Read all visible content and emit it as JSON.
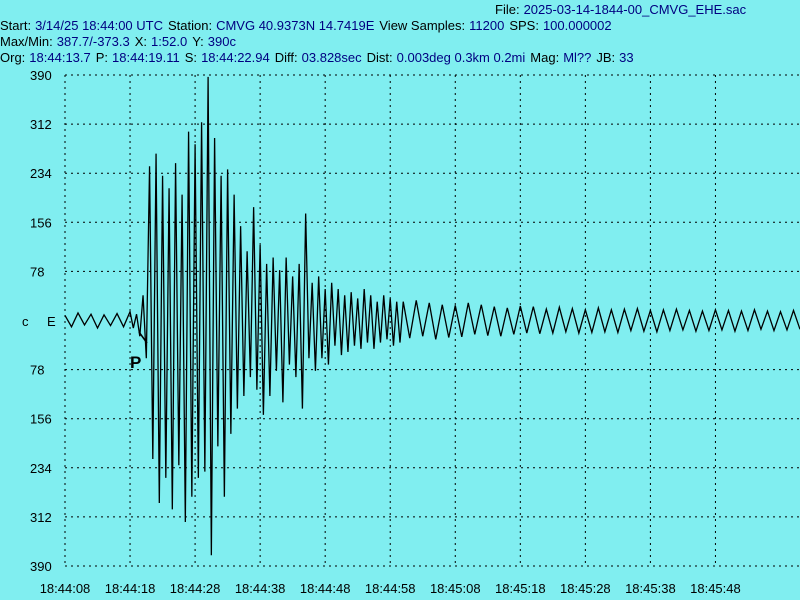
{
  "header": {
    "lines": [
      [
        {
          "label": "File:",
          "value": "2025-03-14-1844-00_CMVG_EHE.sac"
        }
      ],
      [
        {
          "label": "Start:",
          "value": "3/14/25 18:44:00 UTC"
        },
        {
          "label": "Station:",
          "value": "CMVG 40.9373N 14.7419E"
        },
        {
          "label": "View Samples:",
          "value": "11200"
        },
        {
          "label": "SPS:",
          "value": "100.000002"
        }
      ],
      [
        {
          "label": "Max/Min:",
          "value": "387.7/-373.3"
        },
        {
          "label": "X:",
          "value": "1:52.0"
        },
        {
          "label": "Y:",
          "value": "390c"
        }
      ],
      [
        {
          "label": "Org:",
          "value": "18:44:13.7"
        },
        {
          "label": "P:",
          "value": "18:44:19.11"
        },
        {
          "label": "S:",
          "value": "18:44:22.94"
        },
        {
          "label": "Diff:",
          "value": "03.828sec"
        },
        {
          "label": "Dist:",
          "value": "0.003deg 0.3km 0.2mi"
        },
        {
          "label": "Mag:",
          "value": "Ml??"
        },
        {
          "label": "JB:",
          "value": "33"
        }
      ]
    ]
  },
  "chart_data": {
    "type": "line",
    "color": "#000000",
    "grid": true,
    "channel": "c",
    "component": "E",
    "annotation": "P",
    "xlim": [
      8,
      121
    ],
    "ylim": [
      -390,
      390
    ],
    "xticks": [
      {
        "value": 8,
        "label": "18:44:08"
      },
      {
        "value": 18,
        "label": "18:44:18"
      },
      {
        "value": 28,
        "label": "18:44:28"
      },
      {
        "value": 38,
        "label": "18:44:38"
      },
      {
        "value": 48,
        "label": "18:44:48"
      },
      {
        "value": 58,
        "label": "18:44:58"
      },
      {
        "value": 68,
        "label": "18:45:08"
      },
      {
        "value": 78,
        "label": "18:45:18"
      },
      {
        "value": 88,
        "label": "18:45:28"
      },
      {
        "value": 98,
        "label": "18:45:38"
      },
      {
        "value": 108,
        "label": "18:45:48"
      }
    ],
    "yticks": [
      390,
      312,
      234,
      156,
      78,
      {
        "value": -78,
        "label": "78"
      },
      {
        "value": -156,
        "label": "156"
      },
      {
        "value": -234,
        "label": "234"
      },
      {
        "value": -312,
        "label": "312"
      },
      {
        "value": -390,
        "label": "390"
      }
    ],
    "x": [
      8,
      9,
      10,
      11,
      12,
      13,
      14,
      15,
      16,
      17,
      18,
      18.5,
      19,
      19.5,
      20,
      20.5,
      21,
      21.5,
      22,
      22.5,
      23,
      23.5,
      24,
      24.5,
      25,
      25.5,
      26,
      26.5,
      27,
      27.5,
      28,
      28.5,
      29,
      29.5,
      30,
      30.5,
      31,
      31.5,
      32,
      32.5,
      33,
      33.5,
      34,
      34.5,
      35,
      35.5,
      36,
      36.5,
      37,
      37.5,
      38,
      38.5,
      39,
      39.5,
      40,
      40.5,
      41,
      41.5,
      42,
      42.5,
      43,
      43.5,
      44,
      44.5,
      45,
      45.5,
      46,
      46.5,
      47,
      47.5,
      48,
      48.5,
      49,
      49.5,
      50,
      50.5,
      51,
      51.5,
      52,
      52.5,
      53,
      53.5,
      54,
      54.5,
      55,
      55.5,
      56,
      56.5,
      57,
      57.5,
      58,
      58.5,
      59,
      59.5,
      60,
      61,
      62,
      63,
      64,
      65,
      66,
      67,
      68,
      69,
      70,
      71,
      72,
      73,
      74,
      75,
      76,
      77,
      78,
      79,
      80,
      81,
      82,
      83,
      84,
      85,
      86,
      87,
      88,
      89,
      90,
      91,
      92,
      93,
      94,
      95,
      96,
      97,
      98,
      99,
      100,
      101,
      102,
      103,
      104,
      105,
      106,
      107,
      108,
      109,
      110,
      111,
      112,
      113,
      114,
      115,
      116,
      117,
      118,
      119,
      120,
      121
    ],
    "values": [
      8,
      -10,
      12,
      -7,
      10,
      -12,
      9,
      -8,
      11,
      -10,
      14,
      -12,
      10,
      -25,
      40,
      -60,
      245,
      -220,
      265,
      -290,
      230,
      -250,
      210,
      -300,
      250,
      -230,
      200,
      -320,
      300,
      -280,
      280,
      -250,
      315,
      -240,
      387,
      -373,
      290,
      -200,
      230,
      -280,
      240,
      -180,
      200,
      -140,
      150,
      -120,
      110,
      -90,
      180,
      -110,
      120,
      -150,
      90,
      -120,
      100,
      -80,
      80,
      -130,
      100,
      -70,
      70,
      -90,
      90,
      -140,
      170,
      -60,
      60,
      -80,
      70,
      -60,
      50,
      -70,
      60,
      -40,
      50,
      -55,
      40,
      -50,
      45,
      -40,
      35,
      -45,
      50,
      -35,
      40,
      -45,
      30,
      -35,
      40,
      -30,
      35,
      -40,
      30,
      -35,
      30,
      -28,
      32,
      -25,
      28,
      -30,
      25,
      -27,
      24,
      -26,
      28,
      -22,
      25,
      -24,
      22,
      -25,
      20,
      -22,
      23,
      -20,
      22,
      -21,
      18,
      -20,
      21,
      -18,
      19,
      -20,
      17,
      -19,
      20,
      -18,
      17,
      -19,
      18,
      -16,
      19,
      -17,
      16,
      -18,
      17,
      -16,
      18,
      -15,
      16,
      -17,
      15,
      -16,
      17,
      -15,
      16,
      -17,
      15,
      -16,
      17,
      -14,
      15,
      -16,
      14,
      -15,
      16,
      -14
    ]
  }
}
